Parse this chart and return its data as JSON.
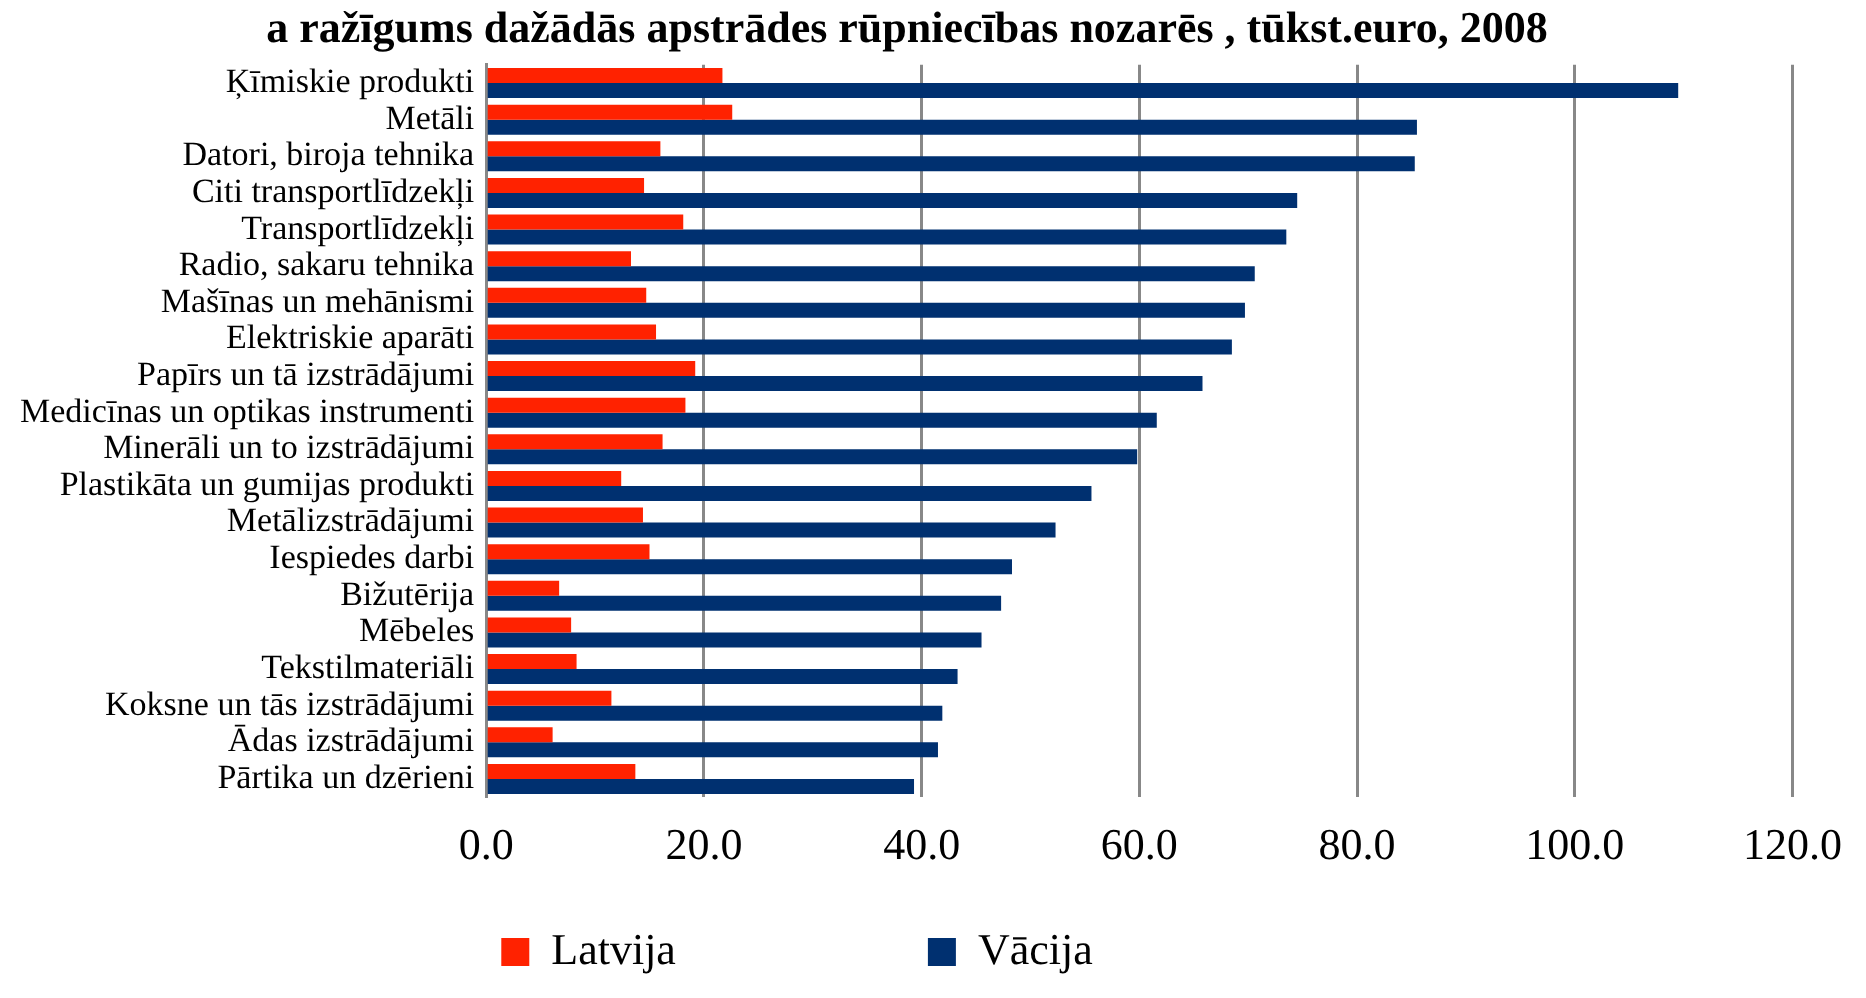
{
  "chart_data": {
    "type": "bar",
    "orientation": "horizontal",
    "title": "a ražīgums dažādās apstrādes rūpniecības nozarēs , tūkst.euro, 2008",
    "categories": [
      "Ķīmiskie produkti",
      "Metāli",
      "Datori, biroja tehnika",
      "Citi transportlīdzekļi",
      "Transportlīdzekļi",
      "Radio, sakaru tehnika",
      "Mašīnas un mehānismi",
      "Elektriskie aparāti",
      "Papīrs un tā izstrādājumi",
      "Medicīnas un optikas instrumenti",
      "Minerāli un to izstrādājumi",
      "Plastikāta un gumijas produkti",
      "Metālizstrādājumi",
      "Iespiedes darbi",
      "Bižutērija",
      "Mēbeles",
      "Tekstilmateriāli",
      "Koksne un tās izstrādājumi",
      "Ādas izstrādājumi",
      "Pārtika un dzērieni"
    ],
    "series": [
      {
        "name": "Latvija",
        "color": "#ff2200",
        "values": [
          21.7,
          22.6,
          16.0,
          14.5,
          18.1,
          13.3,
          14.7,
          15.6,
          19.2,
          18.3,
          16.2,
          12.4,
          14.4,
          15.0,
          6.7,
          7.8,
          8.3,
          11.5,
          6.1,
          13.7
        ]
      },
      {
        "name": "Vācija",
        "color": "#003070",
        "values": [
          109.5,
          85.5,
          85.3,
          74.5,
          73.5,
          70.6,
          69.7,
          68.5,
          65.8,
          61.6,
          59.8,
          55.6,
          52.3,
          48.3,
          47.3,
          45.5,
          43.3,
          41.9,
          41.5,
          39.3
        ]
      }
    ],
    "xlim": [
      0,
      120
    ],
    "xticks": [
      {
        "value": 0,
        "label": "0.0"
      },
      {
        "value": 20,
        "label": "20.0"
      },
      {
        "value": 40,
        "label": "40.0"
      },
      {
        "value": 60,
        "label": "60.0"
      },
      {
        "value": 80,
        "label": "80.0"
      },
      {
        "value": 100,
        "label": "100.0"
      },
      {
        "value": 120,
        "label": "120.0"
      }
    ],
    "grid": "x",
    "legend": "bottom"
  }
}
